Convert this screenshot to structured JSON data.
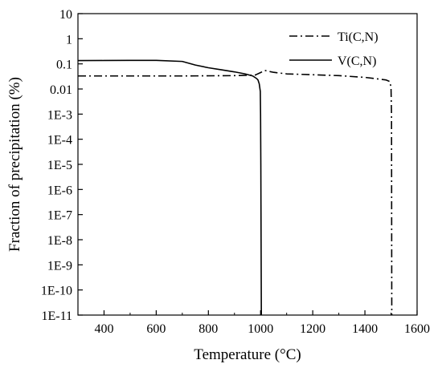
{
  "chart_data": {
    "type": "line",
    "title": "",
    "xlabel": "Temperature (°C)",
    "ylabel": "Fraction of precipitation (%)",
    "xlim": [
      300,
      1600
    ],
    "ylim": [
      1e-11,
      10
    ],
    "yscale": "log",
    "x_ticks": [
      400,
      600,
      800,
      1000,
      1200,
      1400,
      1600
    ],
    "x_tick_labels": [
      "400",
      "600",
      "800",
      "1000",
      "1200",
      "1400",
      "1600"
    ],
    "y_ticks": [
      10,
      1,
      0.1,
      0.01,
      0.001,
      0.0001,
      1e-05,
      1e-06,
      1e-07,
      1e-08,
      1e-09,
      1e-10,
      1e-11
    ],
    "y_tick_labels": [
      "10",
      "1",
      "0.1",
      "0.01",
      "1E-3",
      "1E-4",
      "1E-5",
      "1E-6",
      "1E-7",
      "1E-8",
      "1E-9",
      "1E-10",
      "1E-11"
    ],
    "grid": false,
    "legend_position": "top-right",
    "series": [
      {
        "name": "Ti(C,N)",
        "line_style": "dash-dot",
        "color": "#000000",
        "x": [
          300,
          500,
          700,
          900,
          980,
          1000,
          1015,
          1050,
          1100,
          1200,
          1300,
          1400,
          1480,
          1495,
          1500,
          1502,
          1503
        ],
        "y": [
          0.033,
          0.033,
          0.033,
          0.034,
          0.036,
          0.045,
          0.055,
          0.046,
          0.04,
          0.037,
          0.034,
          0.029,
          0.023,
          0.02,
          0.012,
          0.001,
          1e-11
        ]
      },
      {
        "name": "V(C,N)",
        "line_style": "solid",
        "color": "#000000",
        "x": [
          300,
          400,
          500,
          600,
          700,
          750,
          800,
          850,
          900,
          940,
          970,
          985,
          990,
          995,
          999,
          1000,
          1001,
          1002,
          1003
        ],
        "y": [
          0.135,
          0.136,
          0.138,
          0.138,
          0.125,
          0.09,
          0.07,
          0.058,
          0.048,
          0.04,
          0.033,
          0.026,
          0.023,
          0.016,
          0.008,
          0.001,
          1e-05,
          1e-08,
          1e-11
        ]
      }
    ]
  }
}
